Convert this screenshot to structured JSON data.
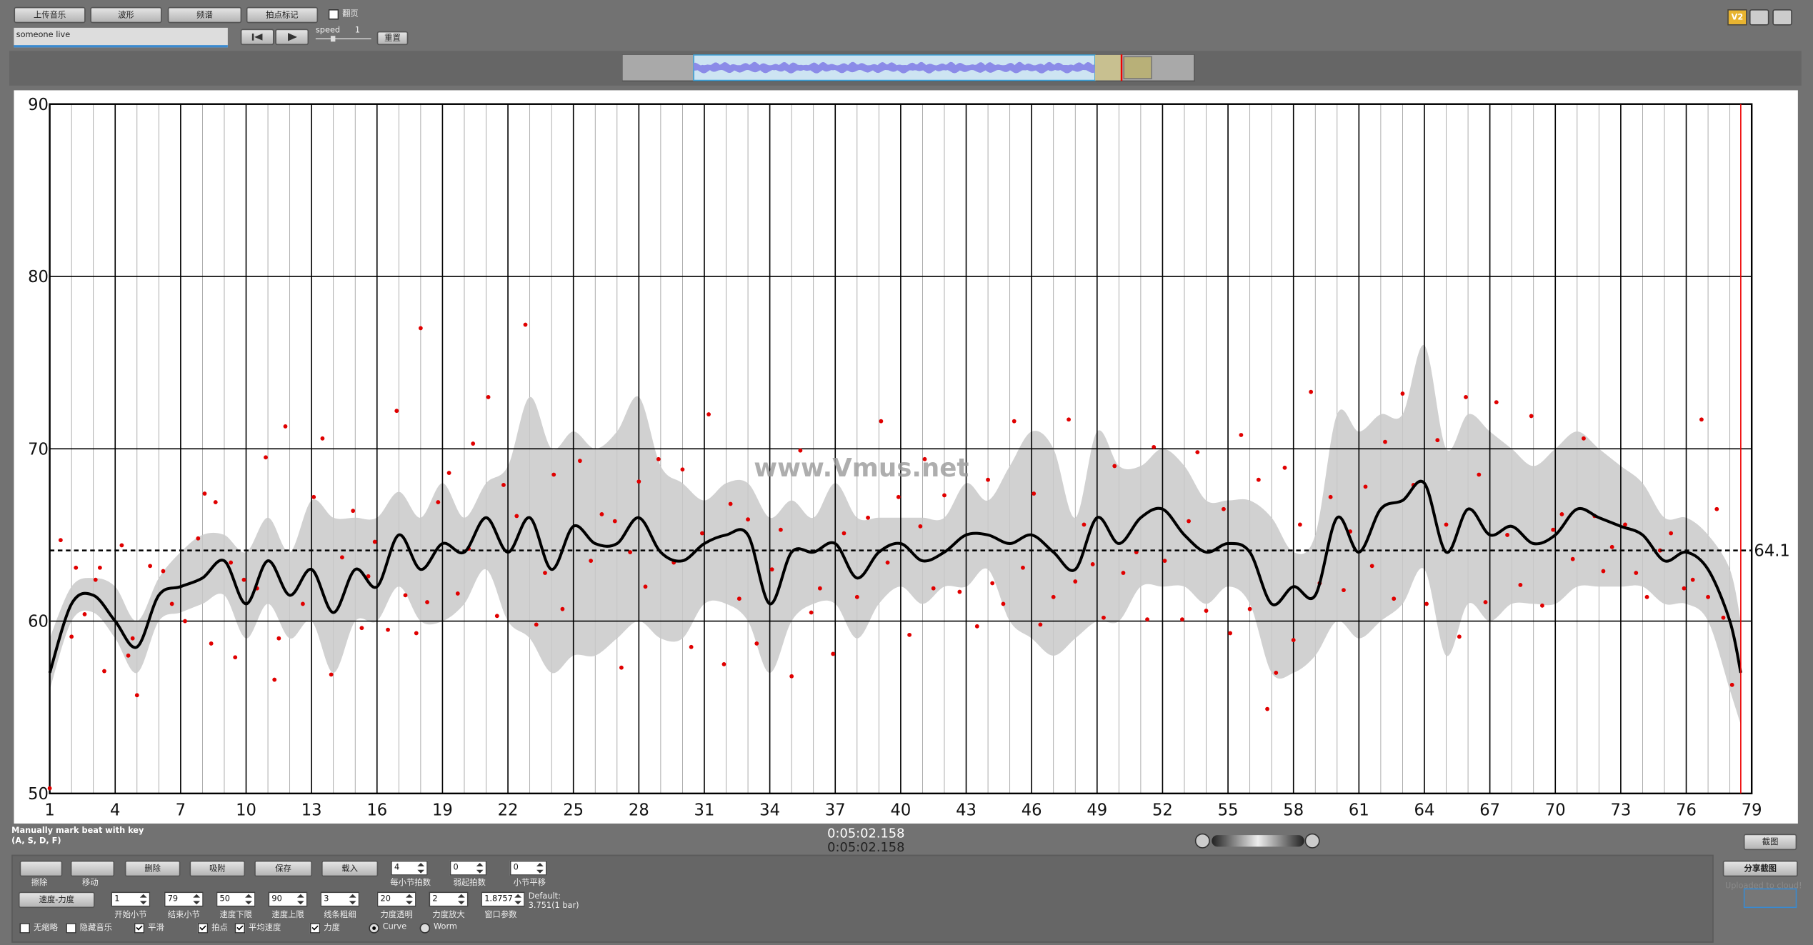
{
  "ui": {
    "top_buttons": [
      "上传音乐",
      "波形",
      "频谱",
      "拍点标记"
    ],
    "page_toggle": "翻页",
    "song_name": "someone live",
    "speed_label": "speed",
    "speed_value": "1",
    "reset": "重置",
    "version": "V2",
    "hint_line1": "Manually mark beat with key",
    "hint_line2": "(A, S, D, F)",
    "time_current": "0:05:02.158",
    "time_total": "0:05:02.158",
    "screenshot": "截图",
    "tool_labels": [
      "擦除",
      "移动"
    ],
    "action_buttons": [
      "删除",
      "吸附",
      "保存",
      "载入"
    ],
    "row1_spinners": [
      {
        "value": "4",
        "label": "每小节拍数"
      },
      {
        "value": "0",
        "label": "弱起拍数"
      },
      {
        "value": "0",
        "label": "小节平移"
      }
    ],
    "mode_button": "速度-力度",
    "row2_spinners": [
      {
        "value": "1",
        "label": "开始小节"
      },
      {
        "value": "79",
        "label": "结束小节"
      },
      {
        "value": "50",
        "label": "速度下限"
      },
      {
        "value": "90",
        "label": "速度上限"
      },
      {
        "value": "3",
        "label": "线条粗细"
      },
      {
        "value": "20",
        "label": "力度透明"
      },
      {
        "value": "2",
        "label": "力度放大"
      },
      {
        "value": "1.8757",
        "label": "窗口参数"
      }
    ],
    "default_label": "Default:",
    "default_value": "3.751(1 bar)",
    "checkboxes": [
      "无缩略",
      "隐藏音乐",
      "平滑",
      "拍点",
      "平均速度",
      "力度"
    ],
    "radios": [
      "Curve",
      "Worm"
    ],
    "share": "分享截图",
    "upload_status": "Uploaded to cloud!"
  },
  "chart_data": {
    "type": "line",
    "watermark": "www.Vmus.net",
    "x": [
      1,
      2,
      3,
      4,
      5,
      6,
      7,
      8,
      9,
      10,
      11,
      12,
      13,
      14,
      15,
      16,
      17,
      18,
      19,
      20,
      21,
      22,
      23,
      24,
      25,
      26,
      27,
      28,
      29,
      30,
      31,
      32,
      33,
      34,
      35,
      36,
      37,
      38,
      39,
      40,
      41,
      42,
      43,
      44,
      45,
      46,
      47,
      48,
      49,
      50,
      51,
      52,
      53,
      54,
      55,
      56,
      57,
      58,
      59,
      60,
      61,
      62,
      63,
      64,
      65,
      66,
      67,
      68,
      69,
      70,
      71,
      72,
      73,
      74,
      75,
      76,
      77,
      78,
      78.5
    ],
    "values": [
      57,
      61,
      61.5,
      60,
      58.5,
      61.5,
      62,
      62.5,
      63.5,
      61,
      63.5,
      61.5,
      63,
      60.5,
      63,
      62,
      65,
      63,
      64.5,
      64,
      66,
      64,
      66,
      63,
      65.5,
      64.5,
      64.5,
      66,
      64,
      63.5,
      64.5,
      65,
      65,
      61,
      64,
      64,
      64.5,
      62.5,
      64,
      64.5,
      63.5,
      64,
      65,
      65,
      64.5,
      65,
      64,
      63,
      66,
      64.5,
      66,
      66.5,
      65,
      64,
      64.5,
      64,
      61,
      62,
      61.5,
      66,
      64,
      66.5,
      67,
      68,
      64,
      66.5,
      65,
      65.5,
      64.5,
      65,
      66.5,
      66,
      65.5,
      65,
      63.5,
      64,
      63,
      60,
      57
    ],
    "color": "#000000",
    "band": {
      "color": "#c9c9c9",
      "upper": [
        59,
        62,
        62.5,
        62,
        60,
        62.5,
        64,
        65,
        65,
        64,
        66,
        64,
        67,
        66,
        66,
        66,
        67.5,
        66,
        68,
        66,
        68,
        69,
        73,
        70,
        71,
        70,
        71,
        73,
        69,
        68,
        67,
        68,
        68,
        66,
        67,
        66,
        68,
        66,
        66,
        66,
        66,
        66,
        68,
        67,
        69,
        71,
        70,
        66,
        71,
        69,
        69,
        70,
        69,
        67,
        67,
        67,
        66,
        64,
        65,
        72,
        71,
        72,
        72,
        76,
        70,
        72,
        71,
        70,
        69,
        70,
        71,
        70,
        69,
        68,
        66,
        66,
        65,
        63,
        60
      ],
      "lower": [
        56,
        60,
        60.5,
        59,
        57,
        60,
        60.5,
        61,
        61.5,
        59,
        61,
        59,
        60,
        57,
        60,
        60,
        62,
        60,
        60,
        61,
        63,
        60,
        59,
        57,
        58,
        58,
        59,
        60,
        59,
        59,
        61,
        61,
        60,
        57,
        60,
        61,
        61,
        59,
        61,
        62,
        61,
        62,
        62,
        63,
        60,
        59,
        58,
        59,
        60,
        60,
        62,
        62,
        62,
        61,
        62,
        61,
        57,
        57,
        58,
        60,
        59,
        60,
        61,
        63,
        58,
        61,
        60,
        61,
        61,
        61,
        62,
        62,
        62,
        62,
        61,
        61,
        60,
        56,
        54
      ]
    },
    "points": {
      "color": "#e00000",
      "x": [
        1.0,
        1.5,
        2.0,
        2.2,
        2.6,
        3.1,
        3.3,
        3.5,
        4.3,
        4.6,
        4.8,
        5.0,
        5.6,
        6.2,
        6.6,
        7.2,
        7.8,
        8.1,
        8.4,
        8.6,
        9.3,
        9.5,
        9.9,
        10.5,
        10.9,
        11.3,
        11.5,
        11.8,
        12.6,
        13.1,
        13.5,
        13.9,
        14.4,
        14.9,
        15.3,
        15.6,
        15.9,
        16.5,
        16.9,
        17.3,
        17.8,
        18.0,
        18.3,
        18.8,
        19.3,
        19.7,
        20.2,
        20.4,
        21.1,
        21.5,
        21.8,
        22.4,
        22.8,
        23.3,
        23.7,
        24.1,
        24.5,
        25.3,
        25.8,
        26.3,
        26.9,
        27.2,
        27.6,
        28.0,
        28.3,
        28.9,
        29.6,
        30.0,
        30.4,
        30.9,
        31.2,
        31.9,
        32.2,
        32.6,
        33.0,
        33.4,
        34.1,
        34.5,
        35.0,
        35.4,
        35.9,
        36.3,
        36.9,
        37.4,
        38.0,
        38.5,
        39.1,
        39.4,
        39.9,
        40.4,
        40.9,
        41.1,
        41.5,
        42.0,
        42.7,
        43.5,
        44.0,
        44.2,
        44.7,
        45.2,
        45.6,
        46.1,
        46.4,
        47.0,
        47.7,
        48.0,
        48.4,
        48.8,
        49.3,
        49.8,
        50.2,
        50.8,
        51.3,
        51.6,
        52.1,
        52.9,
        53.2,
        53.6,
        54.0,
        54.8,
        55.1,
        55.6,
        56.0,
        56.4,
        56.8,
        57.2,
        57.6,
        58.0,
        58.3,
        58.8,
        59.2,
        59.7,
        60.3,
        60.6,
        61.3,
        61.6,
        62.2,
        62.6,
        63.0,
        63.5,
        64.1,
        64.6,
        65.0,
        65.6,
        65.9,
        66.5,
        66.8,
        67.3,
        67.8,
        68.4,
        68.9,
        69.4,
        69.9,
        70.3,
        70.8,
        71.3,
        71.8,
        72.2,
        72.6,
        73.2,
        73.7,
        74.2,
        74.8,
        75.3,
        75.9,
        76.3,
        76.7,
        77.0,
        77.4,
        77.7,
        78.1
      ],
      "y": [
        50.3,
        64.7,
        59.1,
        63.1,
        60.4,
        62.4,
        63.1,
        57.1,
        64.4,
        58.0,
        59.0,
        55.7,
        63.2,
        62.9,
        61.0,
        60.0,
        64.8,
        67.4,
        58.7,
        66.9,
        63.4,
        57.9,
        62.4,
        61.9,
        69.5,
        56.6,
        59.0,
        71.3,
        61.0,
        67.2,
        70.6,
        56.9,
        63.7,
        66.4,
        59.6,
        62.6,
        64.6,
        59.5,
        72.2,
        61.5,
        59.3,
        77.0,
        61.1,
        66.9,
        68.6,
        61.6,
        64.2,
        70.3,
        73.0,
        60.3,
        67.9,
        66.1,
        77.2,
        59.8,
        62.8,
        68.5,
        60.7,
        69.3,
        63.5,
        66.2,
        65.8,
        57.3,
        64.0,
        68.1,
        62.0,
        69.4,
        63.4,
        68.8,
        58.5,
        65.1,
        72.0,
        57.5,
        66.8,
        61.3,
        65.9,
        58.7,
        63.0,
        65.3,
        56.8,
        69.9,
        60.5,
        61.9,
        58.1,
        65.1,
        61.4,
        66.0,
        71.6,
        63.4,
        67.2,
        59.2,
        65.5,
        69.4,
        61.9,
        67.3,
        61.7,
        59.7,
        68.2,
        62.2,
        61.0,
        71.6,
        63.1,
        67.4,
        59.8,
        61.4,
        71.7,
        62.3,
        65.6,
        63.3,
        60.2,
        69.0,
        62.8,
        64.0,
        60.1,
        70.1,
        63.5,
        60.1,
        65.8,
        69.8,
        60.6,
        66.5,
        59.3,
        70.8,
        60.7,
        68.2,
        54.9,
        57.0,
        68.9,
        58.9,
        65.6,
        73.3,
        62.2,
        67.2,
        61.8,
        65.2,
        67.8,
        63.2,
        70.4,
        61.3,
        73.2,
        67.9,
        61.0,
        70.5,
        65.6,
        59.1,
        73.0,
        68.5,
        61.1,
        72.7,
        65.0,
        62.1,
        71.9,
        60.9,
        65.3,
        66.2,
        63.6,
        70.6,
        66.1,
        62.9,
        64.3,
        65.6,
        62.8,
        61.4,
        64.1,
        65.1,
        61.9,
        62.4,
        71.7,
        61.4,
        66.5,
        60.2,
        56.3
      ]
    },
    "mean": 64.1,
    "cursor": 78.5,
    "xlim": [
      1,
      79
    ],
    "xticks": [
      1,
      4,
      7,
      10,
      13,
      16,
      19,
      22,
      25,
      28,
      31,
      34,
      37,
      40,
      43,
      46,
      49,
      52,
      55,
      58,
      61,
      64,
      67,
      70,
      73,
      76,
      79
    ],
    "ylim": [
      50,
      90
    ],
    "yticks": [
      50,
      60,
      70,
      80,
      90
    ],
    "grid": true
  }
}
